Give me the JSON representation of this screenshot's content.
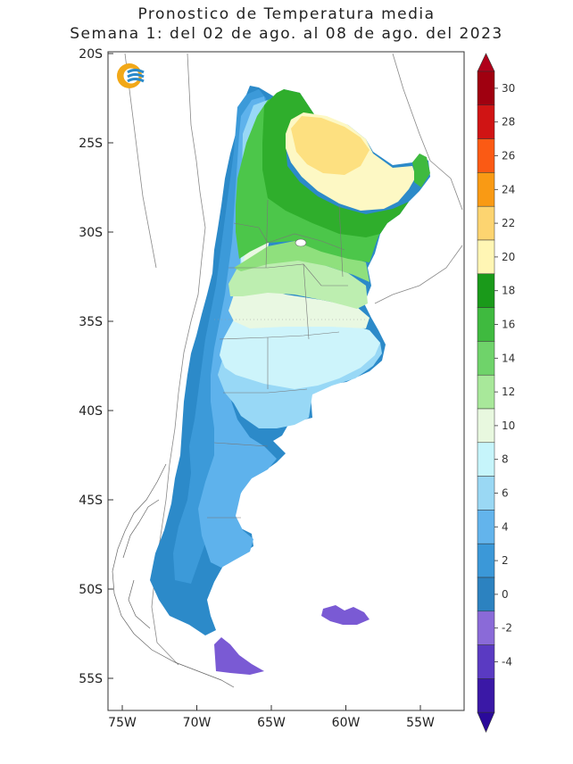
{
  "title": "Pronostico de Temperatura media",
  "subtitle": "Semana 1: del 02 de ago. al 08 de ago. del 2023",
  "map": {
    "lon_ticks": [
      "75W",
      "70W",
      "65W",
      "60W",
      "55W"
    ],
    "lat_ticks": [
      "20S",
      "25S",
      "30S",
      "35S",
      "40S",
      "45S",
      "50S",
      "55S"
    ],
    "lon_range": [
      -76,
      -53
    ],
    "lat_range": [
      -20,
      -57
    ],
    "logo": "institution-logo",
    "regions": [
      {
        "name": "zone-neg4",
        "level": -4,
        "color": "#4a1ab8"
      },
      {
        "name": "zone-neg2",
        "level": -2,
        "color": "#6a4ad0"
      },
      {
        "name": "zone-0",
        "level": 0,
        "color": "#2c8ac9"
      },
      {
        "name": "zone-2",
        "level": 2,
        "color": "#3c9ad9"
      },
      {
        "name": "zone-4",
        "level": 4,
        "color": "#5eb2ec"
      },
      {
        "name": "zone-6",
        "level": 6,
        "color": "#98d8f6"
      },
      {
        "name": "zone-8",
        "level": 8,
        "color": "#cdf4fb"
      },
      {
        "name": "zone-10",
        "level": 10,
        "color": "#e9f8e2"
      },
      {
        "name": "zone-12",
        "level": 12,
        "color": "#bdeeb0"
      },
      {
        "name": "zone-14",
        "level": 14,
        "color": "#8fe07d"
      },
      {
        "name": "zone-16",
        "level": 16,
        "color": "#4cc64a"
      },
      {
        "name": "zone-18",
        "level": 18,
        "color": "#2fae2c"
      },
      {
        "name": "zone-20",
        "level": 20,
        "color": "#fdf8c4"
      },
      {
        "name": "zone-22",
        "level": 22,
        "color": "#fde080"
      }
    ]
  },
  "colorbar": {
    "labels": [
      "30",
      "28",
      "26",
      "24",
      "22",
      "20",
      "18",
      "16",
      "14",
      "12",
      "10",
      "8",
      "6",
      "4",
      "2",
      "0",
      "-2",
      "-4"
    ],
    "colors": [
      "#a00010",
      "#d01414",
      "#fb5a14",
      "#f99a14",
      "#fdd470",
      "#fff6b4",
      "#1a9a1a",
      "#3fba3f",
      "#6fd36a",
      "#a8e89a",
      "#e8f8df",
      "#c6f5fb",
      "#9ad8f4",
      "#63b4ec",
      "#3b98d8",
      "#2c82c0",
      "#8a6ad8",
      "#5a3ac2",
      "#3a18a6"
    ],
    "top_color": "#b0001a",
    "bottom_color": "#2a0a9a"
  }
}
